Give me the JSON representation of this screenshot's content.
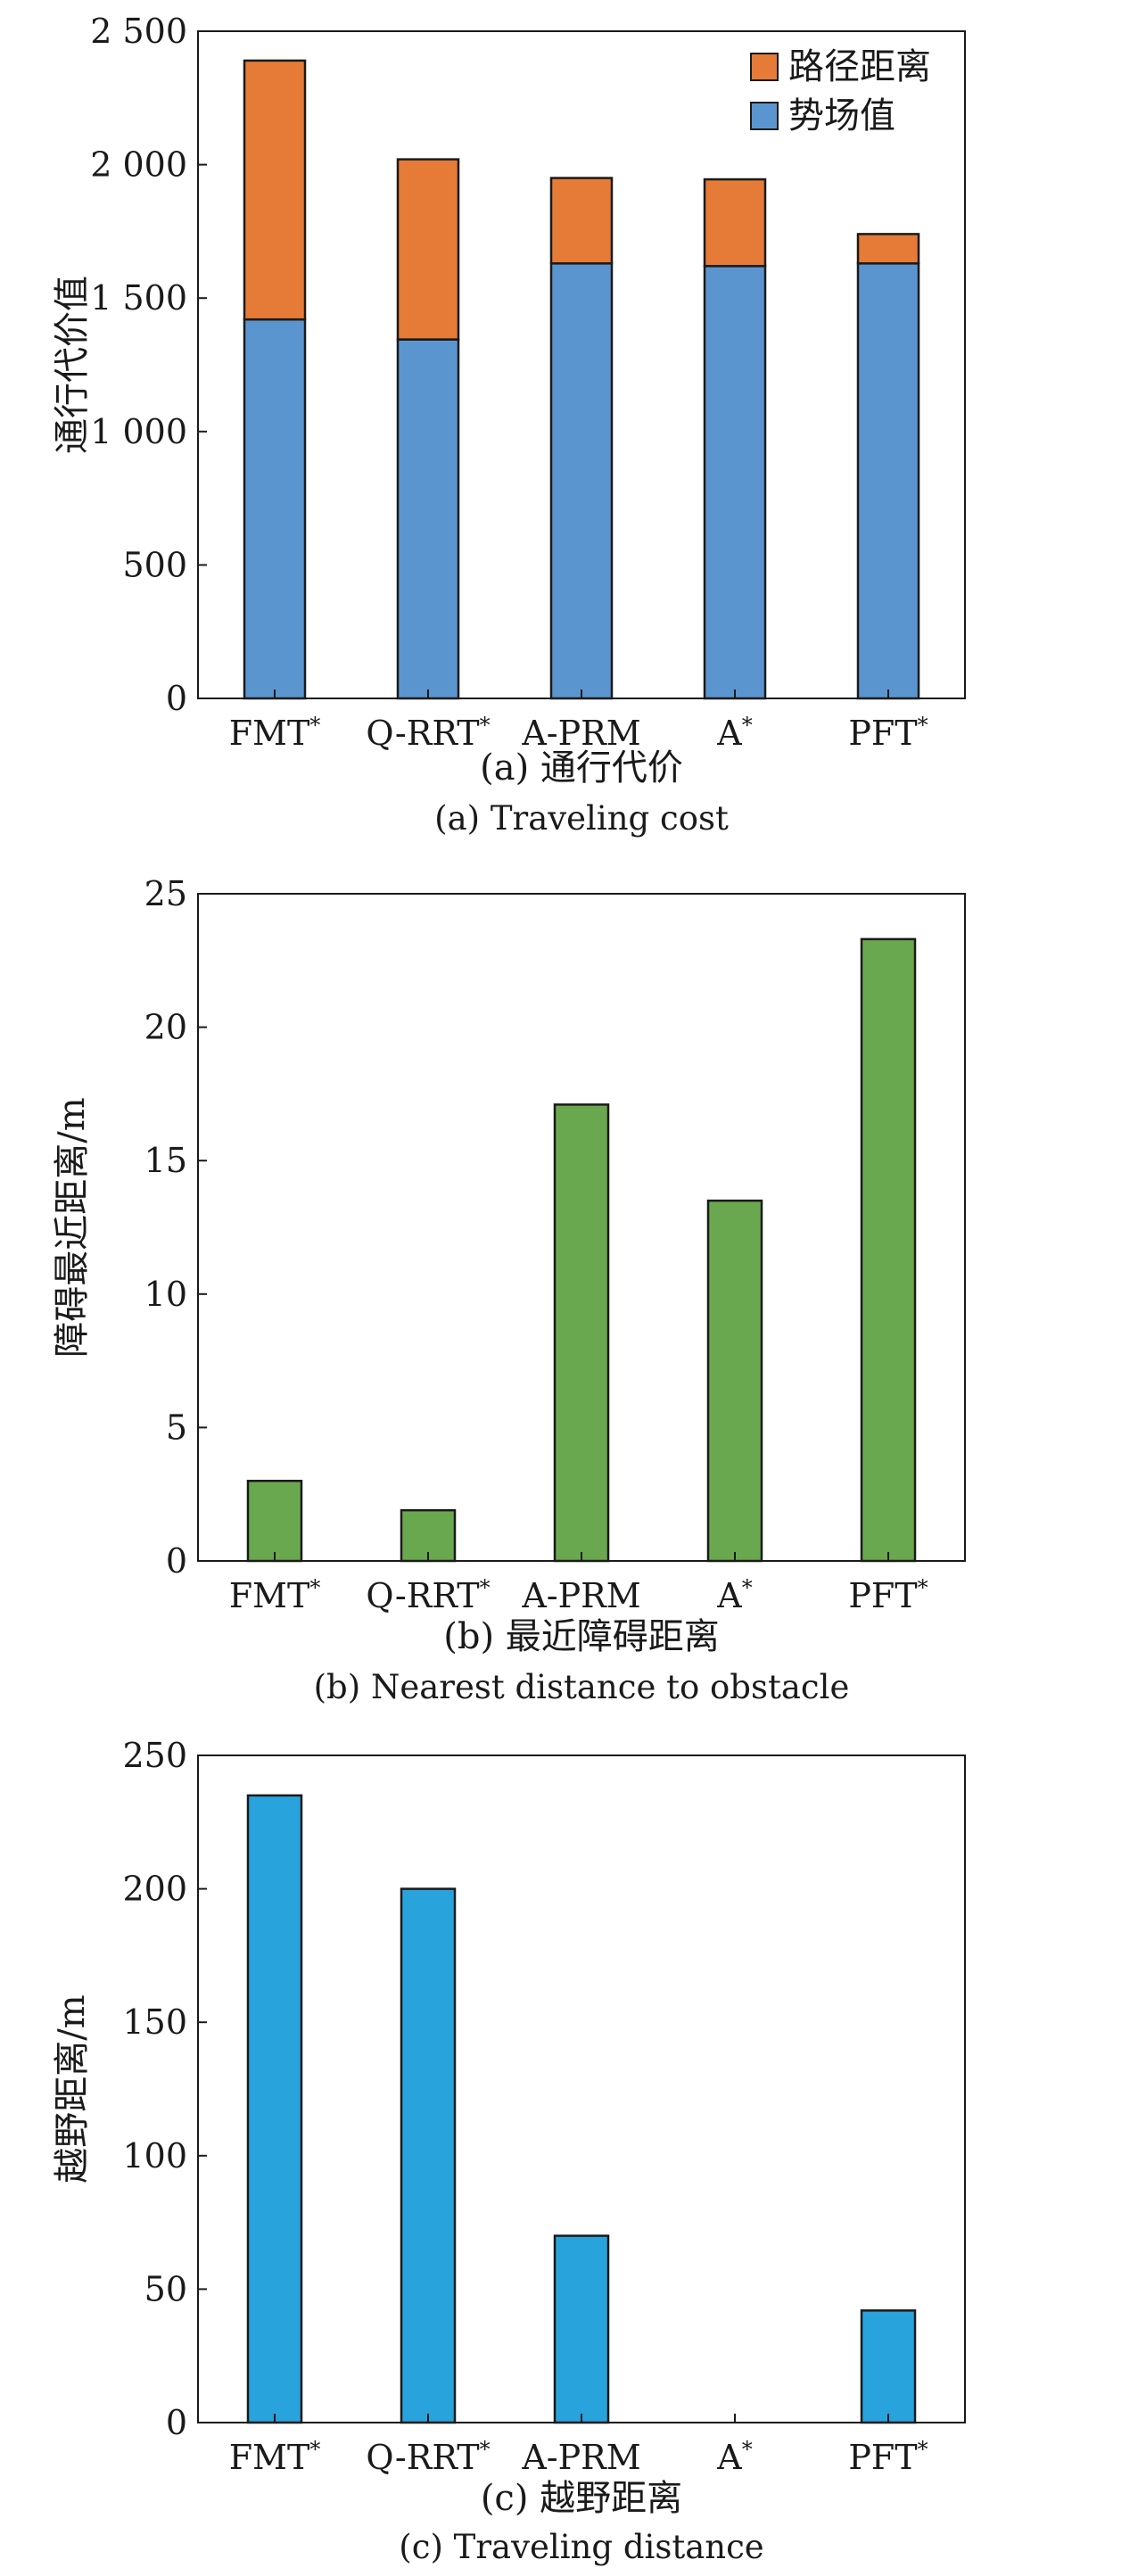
{
  "chart_data": [
    {
      "type": "bar",
      "stacked": true,
      "caption_cn": "(a) 通行代价",
      "caption_en": "(a) Traveling cost",
      "xlabel": "",
      "ylabel": "通行代价值",
      "ylim": [
        0,
        2500
      ],
      "yticks": [
        0,
        500,
        1000,
        1500,
        2000,
        2500
      ],
      "ytick_labels": [
        "0",
        "500",
        "1 000",
        "1 500",
        "2 000",
        "2 500"
      ],
      "categories": [
        "FMT*",
        "Q-RRT*",
        "A-PRM",
        "A*",
        "PFT*"
      ],
      "legend_position": "top-right",
      "series": [
        {
          "name": "势场值",
          "color": "#5b95cf",
          "values": [
            1420,
            1345,
            1630,
            1620,
            1630
          ]
        },
        {
          "name": "路径距离",
          "color": "#e57b37",
          "values": [
            970,
            675,
            320,
            325,
            110
          ]
        }
      ],
      "legend": [
        "路径距离",
        "势场值"
      ],
      "grid": false
    },
    {
      "type": "bar",
      "caption_cn": "(b) 最近障碍距离",
      "caption_en": "(b) Nearest distance to obstacle",
      "xlabel": "",
      "ylabel": "障碍最近距离/m",
      "ylim": [
        0,
        25
      ],
      "yticks": [
        0,
        5,
        10,
        15,
        20,
        25
      ],
      "ytick_labels": [
        "0",
        "5",
        "10",
        "15",
        "20",
        "25"
      ],
      "categories": [
        "FMT*",
        "Q-RRT*",
        "A-PRM",
        "A*",
        "PFT*"
      ],
      "color": "#6aa84f",
      "values": [
        3.0,
        1.9,
        17.1,
        13.5,
        23.3
      ],
      "grid": false
    },
    {
      "type": "bar",
      "caption_cn": "(c) 越野距离",
      "caption_en": "(c) Traveling distance",
      "xlabel": "",
      "ylabel": "越野距离/m",
      "ylim": [
        0,
        250
      ],
      "yticks": [
        0,
        50,
        100,
        150,
        200,
        250
      ],
      "ytick_labels": [
        "0",
        "50",
        "100",
        "150",
        "200",
        "250"
      ],
      "categories": [
        "FMT*",
        "Q-RRT*",
        "A-PRM",
        "A*",
        "PFT*"
      ],
      "color": "#29a3dc",
      "values": [
        235,
        200,
        70,
        0,
        42
      ],
      "grid": false
    }
  ]
}
